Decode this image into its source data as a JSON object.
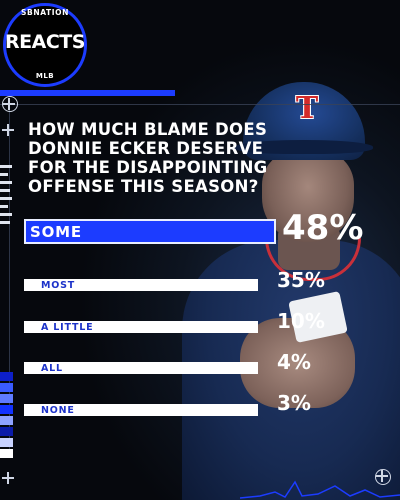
{
  "brand": {
    "top": "SBNATION",
    "main": "REACTS",
    "bottom": "MLB"
  },
  "question": "HOW MUCH BLAME DOES DONNIE ECKER DESERVE FOR THE DISAPPOINTING OFFENSE THIS SEASON?",
  "photo": {
    "cap_letter": "T"
  },
  "colors": {
    "accent": "#1c3cff",
    "label": "#1d33c9",
    "bar": "#ffffff"
  },
  "chart_data": {
    "type": "bar",
    "orientation": "horizontal",
    "title": "HOW MUCH BLAME DOES DONNIE ECKER DESERVE FOR THE DISAPPOINTING OFFENSE THIS SEASON?",
    "categories": [
      "SOME",
      "MOST",
      "A LITTLE",
      "ALL",
      "NONE"
    ],
    "values": [
      48,
      35,
      10,
      4,
      3
    ],
    "value_labels": [
      "48%",
      "35%",
      "10%",
      "4%",
      "3%"
    ],
    "unit": "%",
    "highlight": "SOME"
  }
}
